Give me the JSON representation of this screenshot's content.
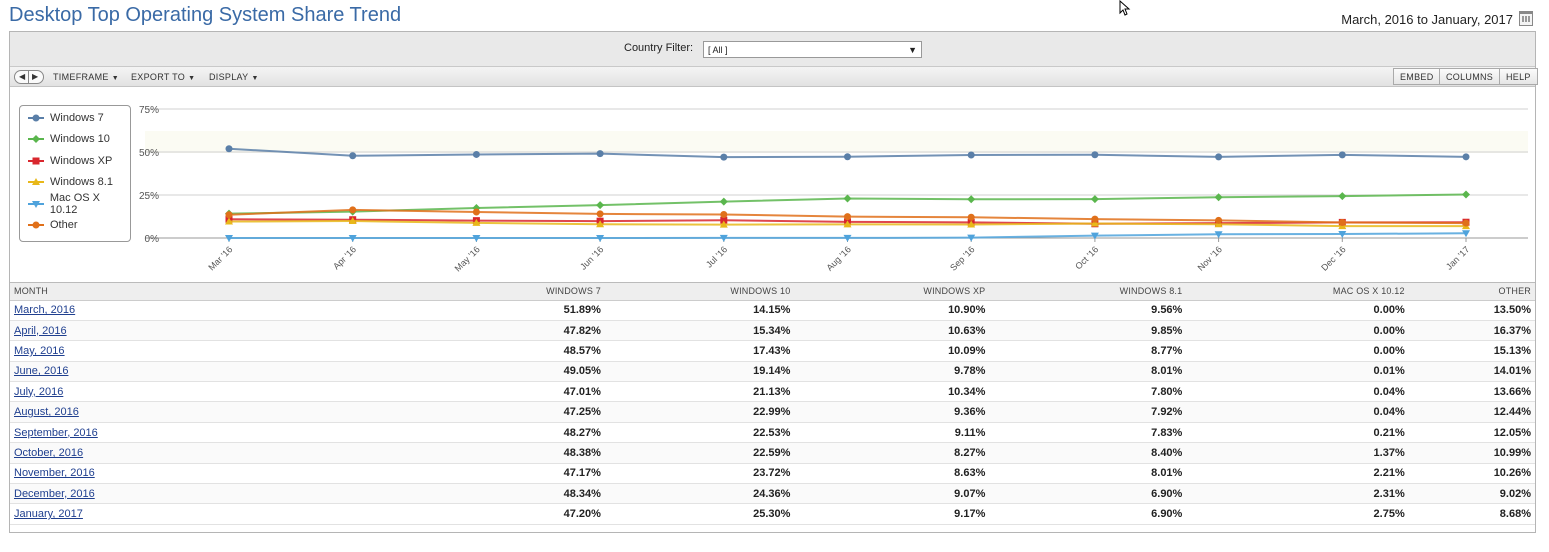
{
  "header": {
    "title": "Desktop Top Operating System Share Trend",
    "date_range": "March, 2016 to January, 2017"
  },
  "filter": {
    "label": "Country Filter:",
    "value": "[ All ]"
  },
  "toolbar": {
    "timeframe": "TIMEFRAME",
    "export": "EXPORT TO",
    "display": "DISPLAY",
    "embed": "EMBED",
    "columns": "COLUMNS",
    "help": "HELP"
  },
  "colors": {
    "Windows 7": "#5a7fa8",
    "Windows 10": "#5ab64d",
    "Windows XP": "#d9272e",
    "Windows 8.1": "#e8b81a",
    "Mac OS X 10.12": "#4fa3dc",
    "Other": "#e0701a"
  },
  "chart_data": {
    "type": "line",
    "categories": [
      "Mar '16",
      "Apr '16",
      "May '16",
      "Jun '16",
      "Jul '16",
      "Aug '16",
      "Sep '16",
      "Oct '16",
      "Nov '16",
      "Dec '16",
      "Jan '17"
    ],
    "ylim": [
      0,
      75
    ],
    "yticks": [
      "0%",
      "25%",
      "50%",
      "75%"
    ],
    "legend_position": "top-left",
    "series": [
      {
        "name": "Windows 7",
        "values": [
          51.89,
          47.82,
          48.57,
          49.05,
          47.01,
          47.25,
          48.27,
          48.38,
          47.17,
          48.34,
          47.2
        ]
      },
      {
        "name": "Windows 10",
        "values": [
          14.15,
          15.34,
          17.43,
          19.14,
          21.13,
          22.99,
          22.53,
          22.59,
          23.72,
          24.36,
          25.3
        ]
      },
      {
        "name": "Windows XP",
        "values": [
          10.9,
          10.63,
          10.09,
          9.78,
          10.34,
          9.36,
          9.11,
          8.27,
          8.63,
          9.07,
          9.17
        ]
      },
      {
        "name": "Windows 8.1",
        "values": [
          9.56,
          9.85,
          8.77,
          8.01,
          7.8,
          7.92,
          7.83,
          8.4,
          8.01,
          6.9,
          6.9
        ]
      },
      {
        "name": "Mac OS X 10.12",
        "values": [
          0.0,
          0.0,
          0.0,
          0.01,
          0.04,
          0.04,
          0.21,
          1.37,
          2.21,
          2.31,
          2.75
        ]
      },
      {
        "name": "Other",
        "values": [
          13.5,
          16.37,
          15.13,
          14.01,
          13.66,
          12.44,
          12.05,
          10.99,
          10.26,
          9.02,
          8.68
        ]
      }
    ]
  },
  "table": {
    "columns": [
      "MONTH",
      "WINDOWS 7",
      "WINDOWS 10",
      "WINDOWS XP",
      "WINDOWS 8.1",
      "MAC OS X 10.12",
      "OTHER"
    ],
    "rows": [
      [
        "March, 2016",
        "51.89%",
        "14.15%",
        "10.90%",
        "9.56%",
        "0.00%",
        "13.50%"
      ],
      [
        "April, 2016",
        "47.82%",
        "15.34%",
        "10.63%",
        "9.85%",
        "0.00%",
        "16.37%"
      ],
      [
        "May, 2016",
        "48.57%",
        "17.43%",
        "10.09%",
        "8.77%",
        "0.00%",
        "15.13%"
      ],
      [
        "June, 2016",
        "49.05%",
        "19.14%",
        "9.78%",
        "8.01%",
        "0.01%",
        "14.01%"
      ],
      [
        "July, 2016",
        "47.01%",
        "21.13%",
        "10.34%",
        "7.80%",
        "0.04%",
        "13.66%"
      ],
      [
        "August, 2016",
        "47.25%",
        "22.99%",
        "9.36%",
        "7.92%",
        "0.04%",
        "12.44%"
      ],
      [
        "September, 2016",
        "48.27%",
        "22.53%",
        "9.11%",
        "7.83%",
        "0.21%",
        "12.05%"
      ],
      [
        "October, 2016",
        "48.38%",
        "22.59%",
        "8.27%",
        "8.40%",
        "1.37%",
        "10.99%"
      ],
      [
        "November, 2016",
        "47.17%",
        "23.72%",
        "8.63%",
        "8.01%",
        "2.21%",
        "10.26%"
      ],
      [
        "December, 2016",
        "48.34%",
        "24.36%",
        "9.07%",
        "6.90%",
        "2.31%",
        "9.02%"
      ],
      [
        "January, 2017",
        "47.20%",
        "25.30%",
        "9.17%",
        "6.90%",
        "2.75%",
        "8.68%"
      ]
    ]
  }
}
